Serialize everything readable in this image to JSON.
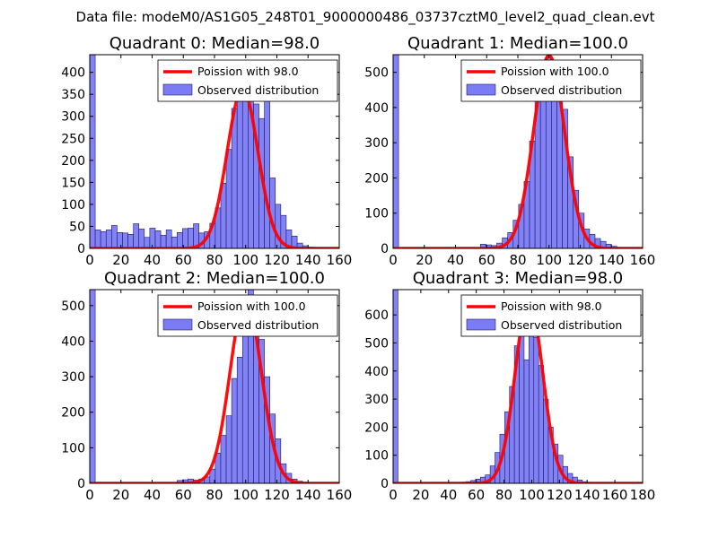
{
  "figure_title": "Data file: modeM0/AS1G05_248T01_9000000486_03737cztM0_level2_quad_clean.evt",
  "colors": {
    "poisson": "#ff0000",
    "hist_fill": "#7b7bf5",
    "hist_edge": "#1a1a66"
  },
  "chart_data": [
    {
      "type": "histogram+line",
      "title": "Quadrant 0: Median=98.0",
      "xlim": [
        0,
        160
      ],
      "ylim": [
        0,
        440
      ],
      "xticks": [
        0,
        20,
        40,
        60,
        80,
        100,
        120,
        140,
        160
      ],
      "yticks": [
        0,
        50,
        100,
        150,
        200,
        250,
        300,
        350,
        400
      ],
      "legend": {
        "position": "top-right",
        "line_label": "Poission with 98.0",
        "bar_label": "Observed distribution"
      },
      "bin_width": 3.5,
      "bins": [
        [
          0,
          440
        ],
        [
          3.5,
          42
        ],
        [
          7,
          38
        ],
        [
          10.5,
          42
        ],
        [
          14,
          52
        ],
        [
          17.5,
          36
        ],
        [
          21,
          35
        ],
        [
          24.5,
          32
        ],
        [
          28,
          56
        ],
        [
          31.5,
          44
        ],
        [
          35,
          25
        ],
        [
          38.5,
          46
        ],
        [
          42,
          40
        ],
        [
          45.5,
          30
        ],
        [
          49,
          42
        ],
        [
          52.5,
          26
        ],
        [
          56,
          36
        ],
        [
          59.5,
          45
        ],
        [
          63,
          46
        ],
        [
          66.5,
          56
        ],
        [
          70,
          35
        ],
        [
          73.5,
          38
        ],
        [
          77,
          57
        ],
        [
          80.5,
          92
        ],
        [
          84,
          148
        ],
        [
          87.5,
          225
        ],
        [
          91,
          318
        ],
        [
          94.5,
          345
        ],
        [
          98,
          375
        ],
        [
          101.5,
          372
        ],
        [
          105,
          328
        ],
        [
          108.5,
          295
        ],
        [
          112,
          338
        ],
        [
          115.5,
          160
        ],
        [
          119,
          100
        ],
        [
          122.5,
          75
        ],
        [
          126,
          42
        ],
        [
          129.5,
          28
        ],
        [
          133,
          12
        ],
        [
          136.5,
          6
        ],
        [
          140,
          3
        ],
        [
          143.5,
          2
        ],
        [
          147,
          1
        ]
      ],
      "poisson": {
        "mean": 98.0,
        "peak": 362
      }
    },
    {
      "type": "histogram+line",
      "title": "Quadrant 1: Median=100.0",
      "xlim": [
        0,
        160
      ],
      "ylim": [
        0,
        550
      ],
      "xticks": [
        0,
        20,
        40,
        60,
        80,
        100,
        120,
        140,
        160
      ],
      "yticks": [
        0,
        100,
        200,
        300,
        400,
        500
      ],
      "legend": {
        "position": "top-right",
        "line_label": "Poission with 100.0",
        "bar_label": "Observed distribution"
      },
      "bin_width": 3.5,
      "bins": [
        [
          0,
          550
        ],
        [
          56,
          12
        ],
        [
          59.5,
          10
        ],
        [
          63,
          8
        ],
        [
          66.5,
          15
        ],
        [
          70,
          30
        ],
        [
          73.5,
          45
        ],
        [
          77,
          80
        ],
        [
          80.5,
          125
        ],
        [
          84,
          190
        ],
        [
          87.5,
          305
        ],
        [
          91,
          430
        ],
        [
          94.5,
          475
        ],
        [
          98,
          545
        ],
        [
          101.5,
          480
        ],
        [
          105,
          425
        ],
        [
          108.5,
          395
        ],
        [
          112,
          260
        ],
        [
          115.5,
          165
        ],
        [
          119,
          100
        ],
        [
          122.5,
          55
        ],
        [
          126,
          40
        ],
        [
          129.5,
          28
        ],
        [
          133,
          20
        ],
        [
          136.5,
          12
        ],
        [
          140,
          6
        ],
        [
          143.5,
          3
        ]
      ],
      "poisson": {
        "mean": 100.0,
        "peak": 548
      }
    },
    {
      "type": "histogram+line",
      "title": "Quadrant 2: Median=100.0",
      "xlim": [
        0,
        160
      ],
      "ylim": [
        0,
        545
      ],
      "xticks": [
        0,
        20,
        40,
        60,
        80,
        100,
        120,
        140,
        160
      ],
      "yticks": [
        0,
        100,
        200,
        300,
        400,
        500
      ],
      "legend": {
        "position": "top-right",
        "line_label": "Poission with 100.0",
        "bar_label": "Observed distribution"
      },
      "bin_width": 3.5,
      "bins": [
        [
          0,
          545
        ],
        [
          56,
          8
        ],
        [
          59.5,
          10
        ],
        [
          63,
          12
        ],
        [
          66.5,
          9
        ],
        [
          70,
          12
        ],
        [
          73.5,
          18
        ],
        [
          77,
          40
        ],
        [
          80.5,
          85
        ],
        [
          84,
          135
        ],
        [
          87.5,
          190
        ],
        [
          91,
          295
        ],
        [
          94.5,
          355
        ],
        [
          98,
          435
        ],
        [
          101.5,
          545
        ],
        [
          105,
          455
        ],
        [
          108.5,
          405
        ],
        [
          112,
          300
        ],
        [
          115.5,
          195
        ],
        [
          119,
          125
        ],
        [
          122.5,
          55
        ],
        [
          126,
          28
        ],
        [
          129.5,
          12
        ],
        [
          133,
          6
        ],
        [
          136.5,
          3
        ]
      ],
      "poisson": {
        "mean": 100.0,
        "peak": 520
      }
    },
    {
      "type": "histogram+line",
      "title": "Quadrant 3: Median=98.0",
      "xlim": [
        0,
        180
      ],
      "ylim": [
        0,
        690
      ],
      "xticks": [
        0,
        20,
        40,
        60,
        80,
        100,
        120,
        140,
        160,
        180
      ],
      "yticks": [
        0,
        100,
        200,
        300,
        400,
        500,
        600
      ],
      "legend": {
        "position": "top-right",
        "line_label": "Poission with 98.0",
        "bar_label": "Observed distribution"
      },
      "bin_width": 3.5,
      "bins": [
        [
          0,
          690
        ],
        [
          49,
          4
        ],
        [
          52.5,
          6
        ],
        [
          56,
          10
        ],
        [
          59.5,
          15
        ],
        [
          63,
          22
        ],
        [
          66.5,
          30
        ],
        [
          70,
          62
        ],
        [
          73.5,
          110
        ],
        [
          77,
          175
        ],
        [
          80.5,
          255
        ],
        [
          84,
          345
        ],
        [
          87.5,
          490
        ],
        [
          91,
          575
        ],
        [
          94.5,
          440
        ],
        [
          98,
          610
        ],
        [
          101.5,
          520
        ],
        [
          105,
          420
        ],
        [
          108.5,
          300
        ],
        [
          112,
          200
        ],
        [
          115.5,
          140
        ],
        [
          119,
          100
        ],
        [
          122.5,
          60
        ],
        [
          126,
          35
        ],
        [
          129.5,
          22
        ],
        [
          133,
          12
        ],
        [
          136.5,
          6
        ],
        [
          140,
          3
        ]
      ],
      "poisson": {
        "mean": 98.0,
        "peak": 655
      }
    }
  ]
}
